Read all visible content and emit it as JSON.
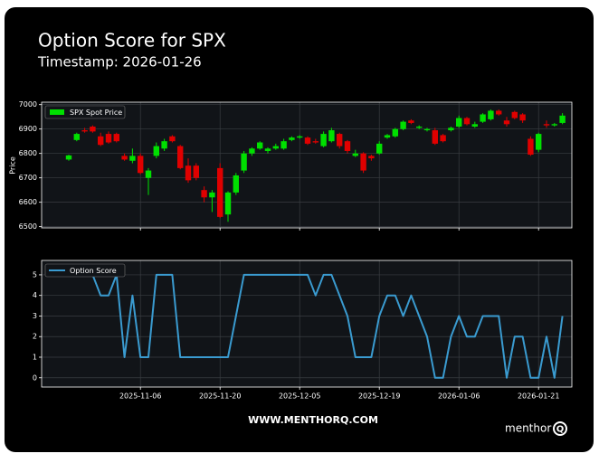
{
  "chart_data": [
    {
      "type": "candlestick",
      "title": "Option Score for SPX",
      "subtitle": "Timestamp: 2026-01-26",
      "ylabel": "Price",
      "series": [
        {
          "name": "SPX Spot Price",
          "up_color": "#00e000",
          "down_color": "#e00000",
          "open": [
            6775,
            6855,
            6895,
            6910,
            6870,
            6880,
            6880,
            6790,
            6770,
            6790,
            6700,
            6790,
            6820,
            6870,
            6830,
            6750,
            6750,
            6650,
            6620,
            6740,
            6550,
            6640,
            6730,
            6800,
            6820,
            6810,
            6820,
            6820,
            6855,
            6865,
            6865,
            6850,
            6830,
            6850,
            6880,
            6850,
            6790,
            6800,
            6790,
            6800,
            6865,
            6870,
            6900,
            6935,
            6905,
            6895,
            6895,
            6875,
            6895,
            6910,
            6945,
            6910,
            6930,
            6940,
            6975,
            6935,
            6970,
            6960,
            6860,
            6815,
            6920,
            6915,
            6925
          ],
          "high": [
            6795,
            6885,
            6905,
            6915,
            6885,
            6890,
            6885,
            6800,
            6820,
            6800,
            6740,
            6845,
            6860,
            6875,
            6835,
            6780,
            6760,
            6665,
            6650,
            6760,
            6645,
            6720,
            6810,
            6825,
            6850,
            6825,
            6840,
            6860,
            6870,
            6875,
            6870,
            6860,
            6890,
            6905,
            6885,
            6855,
            6815,
            6805,
            6795,
            6850,
            6880,
            6905,
            6935,
            6940,
            6915,
            6905,
            6905,
            6880,
            6910,
            6955,
            6950,
            6930,
            6965,
            6980,
            6980,
            6950,
            6975,
            6965,
            6870,
            6885,
            6935,
            6925,
            6965
          ],
          "low": [
            6770,
            6850,
            6885,
            6885,
            6830,
            6840,
            6845,
            6770,
            6760,
            6715,
            6630,
            6780,
            6810,
            6845,
            6735,
            6680,
            6690,
            6600,
            6560,
            6535,
            6520,
            6630,
            6720,
            6790,
            6815,
            6800,
            6815,
            6815,
            6850,
            6860,
            6835,
            6840,
            6825,
            6845,
            6820,
            6800,
            6785,
            6720,
            6770,
            6795,
            6860,
            6865,
            6895,
            6920,
            6900,
            6890,
            6835,
            6845,
            6890,
            6905,
            6915,
            6905,
            6925,
            6935,
            6955,
            6910,
            6940,
            6925,
            6790,
            6805,
            6905,
            6910,
            6920
          ],
          "close": [
            6792,
            6880,
            6890,
            6890,
            6835,
            6845,
            6850,
            6775,
            6790,
            6720,
            6730,
            6830,
            6850,
            6850,
            6740,
            6690,
            6700,
            6620,
            6640,
            6540,
            6640,
            6710,
            6800,
            6820,
            6845,
            6820,
            6830,
            6850,
            6865,
            6870,
            6840,
            6845,
            6880,
            6895,
            6830,
            6810,
            6800,
            6730,
            6780,
            6840,
            6875,
            6900,
            6930,
            6925,
            6910,
            6900,
            6840,
            6850,
            6905,
            6945,
            6920,
            6920,
            6960,
            6975,
            6960,
            6920,
            6945,
            6935,
            6795,
            6880,
            6915,
            6920,
            6955
          ]
        }
      ],
      "ylim": [
        6495,
        7010
      ],
      "yticks": [
        6500,
        6600,
        6700,
        6800,
        6900,
        7000
      ],
      "grid": true,
      "legend": "upper left"
    },
    {
      "type": "line",
      "categories": [
        null,
        null,
        null,
        null,
        null,
        null,
        null,
        null,
        null,
        "2025-11-06",
        null,
        null,
        null,
        null,
        null,
        null,
        null,
        null,
        null,
        "2025-11-20",
        null,
        null,
        null,
        null,
        null,
        null,
        null,
        null,
        null,
        "2025-12-05",
        null,
        null,
        null,
        null,
        null,
        null,
        null,
        null,
        null,
        "2025-12-19",
        null,
        null,
        null,
        null,
        null,
        null,
        null,
        null,
        null,
        "2026-01-06",
        null,
        null,
        null,
        null,
        null,
        null,
        null,
        null,
        null,
        "2026-01-21",
        null,
        null,
        null
      ],
      "series": [
        {
          "name": "Option Score",
          "color": "#3a9bd0",
          "values": [
            null,
            null,
            null,
            5,
            4,
            4,
            5,
            1,
            4,
            1,
            1,
            5,
            5,
            5,
            1,
            1,
            1,
            1,
            1,
            1,
            1,
            3,
            5,
            5,
            5,
            5,
            5,
            5,
            5,
            5,
            5,
            4,
            5,
            5,
            4,
            3,
            1,
            1,
            1,
            3,
            4,
            4,
            3,
            4,
            3,
            2,
            0,
            0,
            2,
            3,
            2,
            2,
            3,
            3,
            3,
            0,
            2,
            2,
            0,
            0,
            2,
            0,
            3
          ]
        }
      ],
      "ylim": [
        -0.45,
        5.7
      ],
      "yticks": [
        0,
        1,
        2,
        3,
        4,
        5
      ],
      "grid": true,
      "legend": "upper left",
      "footer": "WWW.MENTHORQ.COM",
      "logo": "menthor",
      "logo_mark": "Q"
    }
  ]
}
